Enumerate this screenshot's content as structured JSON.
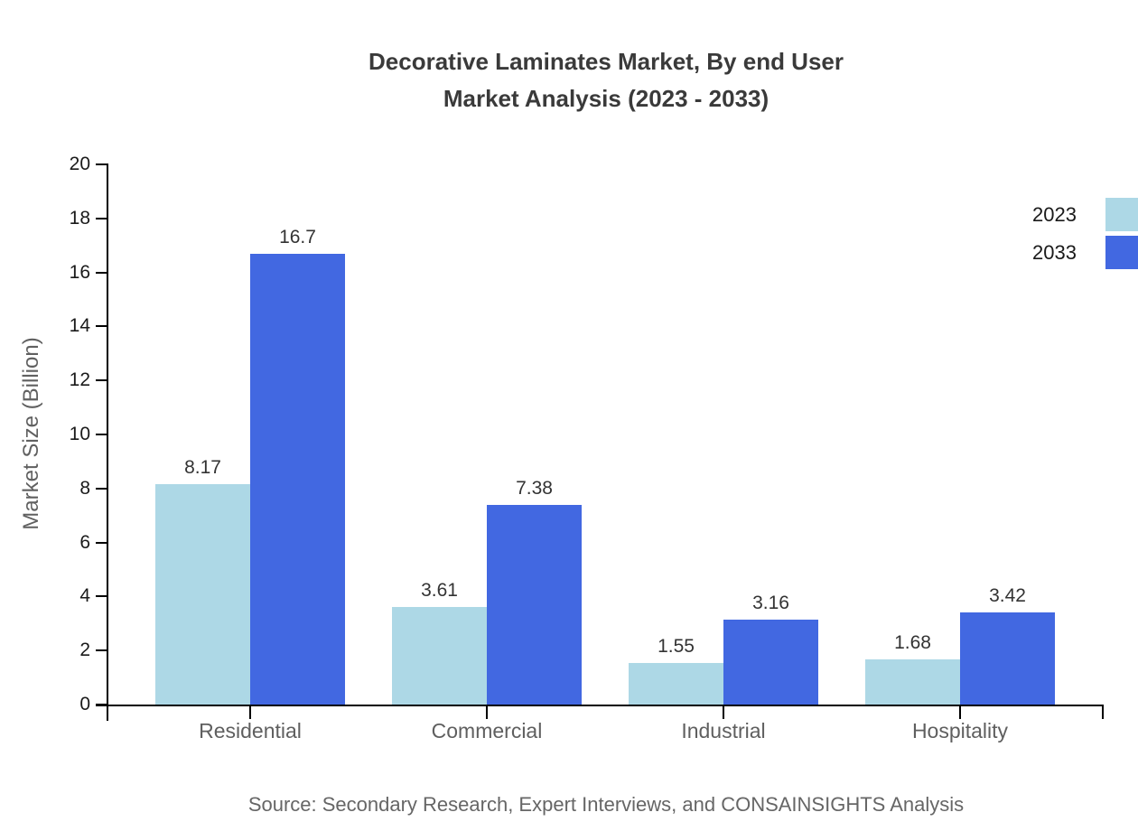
{
  "title": {
    "line1": "Decorative Laminates Market, By end User",
    "line2": "Market Analysis (2023 - 2033)"
  },
  "source": "Source: Secondary Research, Expert Interviews, and CONSAINSIGHTS Analysis",
  "chart_data": {
    "type": "bar",
    "title": "Decorative Laminates Market, By end User Market Analysis (2023 - 2033)",
    "categories": [
      "Residential",
      "Commercial",
      "Industrial",
      "Hospitality"
    ],
    "series": [
      {
        "name": "2023",
        "color": "#ADD8E6",
        "values": [
          8.17,
          3.61,
          1.55,
          1.68
        ],
        "labels": [
          "8.17",
          "3.61",
          "1.55",
          "1.68"
        ]
      },
      {
        "name": "2033",
        "color": "#4268E1",
        "values": [
          16.7,
          7.38,
          3.16,
          3.42
        ],
        "labels": [
          "16.7",
          "7.38",
          "3.16",
          "3.42"
        ]
      }
    ],
    "xlabel": "",
    "ylabel": "Market Size (Billion)",
    "ylim": [
      0,
      20
    ],
    "y_ticks": [
      0,
      2,
      4,
      6,
      8,
      10,
      12,
      14,
      16,
      18,
      20
    ],
    "grid": false,
    "legend_position": "top-right",
    "axis_color": "#000000"
  }
}
